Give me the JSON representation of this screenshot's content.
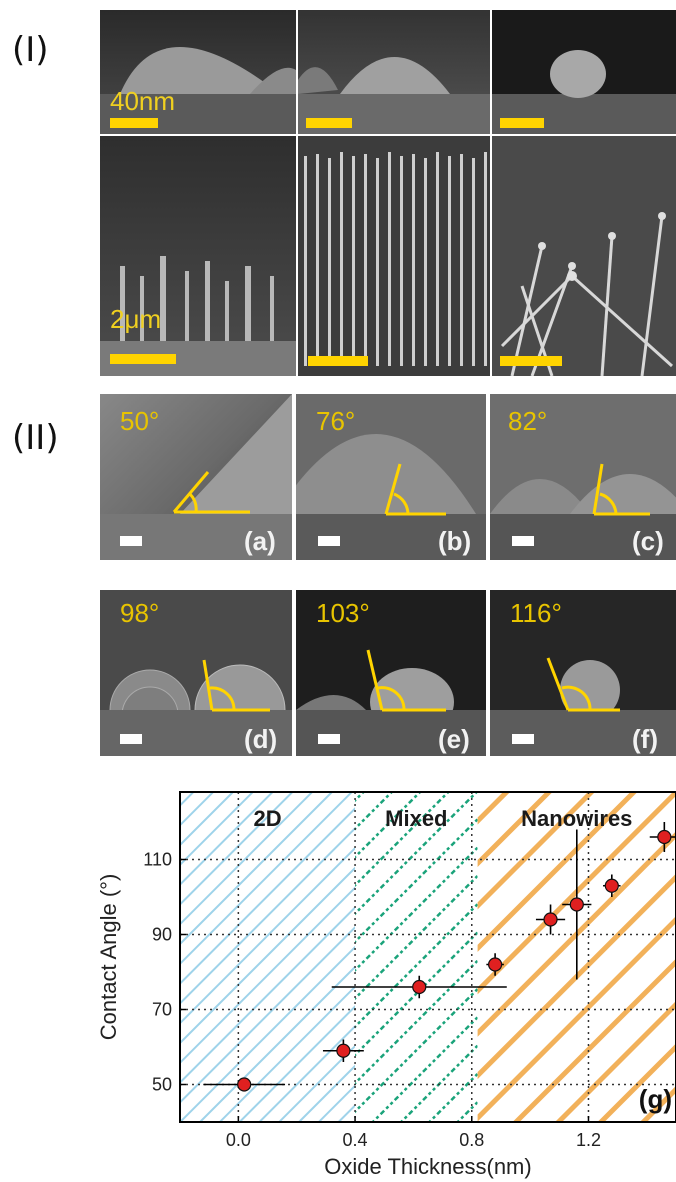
{
  "section_labels": {
    "top": "(I)",
    "middle": "(II)"
  },
  "scale_labels": {
    "top": "40nm",
    "bottom": "2μm"
  },
  "angle_panels": [
    {
      "angle": "50°",
      "letter": "(a)"
    },
    {
      "angle": "76°",
      "letter": "(b)"
    },
    {
      "angle": "82°",
      "letter": "(c)"
    },
    {
      "angle": "98°",
      "letter": "(d)"
    },
    {
      "angle": "103°",
      "letter": "(e)"
    },
    {
      "angle": "116°",
      "letter": "(f)"
    }
  ],
  "chart_data": {
    "type": "scatter",
    "xlabel": "Oxide Thickness(nm)",
    "ylabel": "Contact Angle (°)",
    "xlim": [
      -0.2,
      1.5
    ],
    "ylim": [
      40,
      128
    ],
    "xticks": [
      0.0,
      0.4,
      0.8,
      1.2
    ],
    "xtick_labels": [
      "0.0",
      "0.4",
      "0.8",
      "1.2"
    ],
    "yticks": [
      50,
      70,
      90,
      110
    ],
    "ytick_labels": [
      "50",
      "70",
      "90",
      "110"
    ],
    "grid": true,
    "panel_label": "(g)",
    "regions": [
      {
        "label": "2D",
        "from": -0.2,
        "to": 0.4,
        "color": "#9fd3ea",
        "pattern": "thin diagonal hatch"
      },
      {
        "label": "Mixed",
        "from": 0.4,
        "to": 0.82,
        "color": "#1aa37a",
        "pattern": "dotted diagonal"
      },
      {
        "label": "Nanowires",
        "from": 0.82,
        "to": 1.5,
        "color": "#f2b15a",
        "pattern": "thick diagonal hatch"
      }
    ],
    "points": [
      {
        "x": 0.02,
        "y": 50,
        "xerr": 0.14,
        "yerr": 0
      },
      {
        "x": 0.36,
        "y": 59,
        "xerr": 0.07,
        "yerr": 3
      },
      {
        "x": 0.62,
        "y": 76,
        "xerr": 0.3,
        "yerr": 3
      },
      {
        "x": 0.88,
        "y": 82,
        "xerr": 0.03,
        "yerr": 3
      },
      {
        "x": 1.07,
        "y": 94,
        "xerr": 0.05,
        "yerr": 4
      },
      {
        "x": 1.16,
        "y": 98,
        "xerr": 0.05,
        "yerr": 20
      },
      {
        "x": 1.28,
        "y": 103,
        "xerr": 0.03,
        "yerr": 3
      },
      {
        "x": 1.46,
        "y": 116,
        "xerr": 0.05,
        "yerr": 4
      }
    ],
    "marker_color": "#e02020"
  }
}
